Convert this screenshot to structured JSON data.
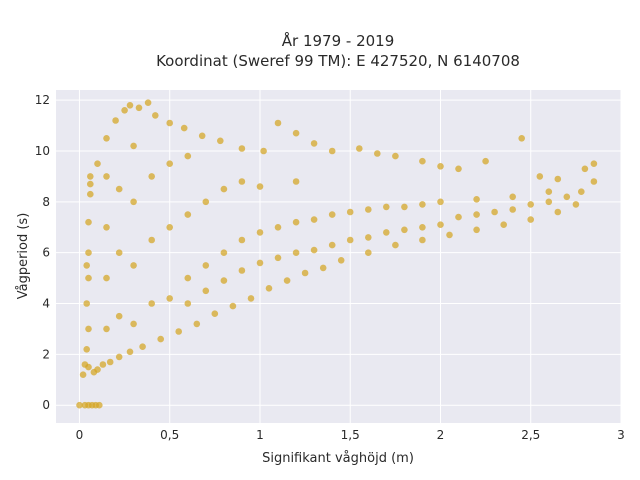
{
  "chart_data": {
    "type": "scatter",
    "title_lines": [
      "År 1979 - 2019",
      "Koordinat (Sweref 99 TM): E 427520, N 6140708"
    ],
    "xlabel": "Signifikant våghöjd (m)",
    "ylabel": "Vågperiod (s)",
    "xlim": [
      -0.13,
      3.0
    ],
    "ylim": [
      -0.7,
      12.4
    ],
    "x_ticks": [
      0,
      0.5,
      1,
      1.5,
      2,
      2.5,
      3
    ],
    "x_tick_labels": [
      "0",
      "0,5",
      "1",
      "1,5",
      "2",
      "2,5",
      "3"
    ],
    "y_ticks": [
      0,
      2,
      4,
      6,
      8,
      10,
      12
    ],
    "y_tick_labels": [
      "0",
      "2",
      "4",
      "6",
      "8",
      "10",
      "12"
    ],
    "grid": true,
    "colors": {
      "point": "#d4a522",
      "plot_background": "#e9e9f1",
      "grid": "#ffffff"
    },
    "point_opacity": 0.72,
    "points": [
      [
        0.0,
        0.0
      ],
      [
        0.03,
        0.0
      ],
      [
        0.05,
        0.0
      ],
      [
        0.07,
        0.0
      ],
      [
        0.09,
        0.0
      ],
      [
        0.11,
        0.0
      ],
      [
        0.02,
        1.2
      ],
      [
        0.03,
        1.6
      ],
      [
        0.04,
        2.2
      ],
      [
        0.05,
        3.0
      ],
      [
        0.04,
        4.0
      ],
      [
        0.05,
        5.0
      ],
      [
        0.05,
        6.0
      ],
      [
        0.05,
        7.2
      ],
      [
        0.06,
        8.3
      ],
      [
        0.06,
        9.0
      ],
      [
        0.04,
        5.5
      ],
      [
        0.06,
        8.7
      ],
      [
        0.05,
        1.5
      ],
      [
        0.08,
        1.3
      ],
      [
        0.1,
        1.4
      ],
      [
        0.13,
        1.6
      ],
      [
        0.17,
        1.7
      ],
      [
        0.22,
        1.9
      ],
      [
        0.28,
        2.1
      ],
      [
        0.35,
        2.3
      ],
      [
        0.45,
        2.6
      ],
      [
        0.55,
        2.9
      ],
      [
        0.65,
        3.2
      ],
      [
        0.75,
        3.6
      ],
      [
        0.85,
        3.9
      ],
      [
        0.95,
        4.2
      ],
      [
        1.05,
        4.6
      ],
      [
        1.15,
        4.9
      ],
      [
        1.25,
        5.2
      ],
      [
        1.35,
        5.4
      ],
      [
        1.45,
        5.7
      ],
      [
        1.6,
        6.0
      ],
      [
        1.75,
        6.3
      ],
      [
        1.9,
        6.5
      ],
      [
        2.05,
        6.7
      ],
      [
        2.2,
        6.9
      ],
      [
        2.35,
        7.1
      ],
      [
        2.5,
        7.3
      ],
      [
        2.65,
        7.6
      ],
      [
        2.75,
        7.9
      ],
      [
        0.1,
        9.5
      ],
      [
        0.15,
        10.5
      ],
      [
        0.2,
        11.2
      ],
      [
        0.25,
        11.6
      ],
      [
        0.28,
        11.8
      ],
      [
        0.33,
        11.7
      ],
      [
        0.38,
        11.9
      ],
      [
        0.42,
        11.4
      ],
      [
        0.5,
        11.1
      ],
      [
        0.58,
        10.9
      ],
      [
        0.68,
        10.6
      ],
      [
        0.78,
        10.4
      ],
      [
        0.9,
        10.1
      ],
      [
        1.02,
        10.0
      ],
      [
        1.1,
        11.1
      ],
      [
        1.2,
        10.7
      ],
      [
        1.3,
        10.3
      ],
      [
        1.4,
        10.0
      ],
      [
        1.55,
        10.1
      ],
      [
        1.65,
        9.9
      ],
      [
        1.75,
        9.8
      ],
      [
        1.9,
        9.6
      ],
      [
        2.0,
        9.4
      ],
      [
        2.1,
        9.3
      ],
      [
        2.25,
        9.6
      ],
      [
        2.45,
        10.5
      ],
      [
        2.55,
        9.0
      ],
      [
        2.65,
        8.9
      ],
      [
        2.8,
        9.3
      ],
      [
        2.85,
        9.5
      ],
      [
        2.85,
        8.8
      ],
      [
        2.78,
        8.4
      ],
      [
        2.7,
        8.2
      ],
      [
        2.6,
        8.0
      ],
      [
        2.5,
        7.9
      ],
      [
        2.4,
        7.7
      ],
      [
        2.3,
        7.6
      ],
      [
        2.2,
        7.5
      ],
      [
        2.1,
        7.4
      ],
      [
        2.0,
        7.1
      ],
      [
        1.9,
        7.0
      ],
      [
        1.8,
        6.9
      ],
      [
        1.7,
        6.8
      ],
      [
        1.6,
        6.6
      ],
      [
        1.5,
        6.5
      ],
      [
        1.4,
        6.3
      ],
      [
        1.3,
        6.1
      ],
      [
        1.2,
        6.0
      ],
      [
        1.1,
        5.8
      ],
      [
        1.0,
        5.6
      ],
      [
        0.9,
        5.3
      ],
      [
        0.8,
        4.9
      ],
      [
        0.7,
        4.5
      ],
      [
        0.6,
        4.0
      ],
      [
        0.15,
        3.0
      ],
      [
        0.15,
        5.0
      ],
      [
        0.15,
        7.0
      ],
      [
        0.15,
        9.0
      ],
      [
        0.22,
        3.5
      ],
      [
        0.22,
        6.0
      ],
      [
        0.22,
        8.5
      ],
      [
        0.3,
        3.2
      ],
      [
        0.3,
        5.5
      ],
      [
        0.3,
        8.0
      ],
      [
        0.3,
        10.2
      ],
      [
        0.4,
        4.0
      ],
      [
        0.4,
        6.5
      ],
      [
        0.4,
        9.0
      ],
      [
        0.5,
        4.2
      ],
      [
        0.5,
        7.0
      ],
      [
        0.5,
        9.5
      ],
      [
        0.6,
        5.0
      ],
      [
        0.6,
        7.5
      ],
      [
        0.6,
        9.8
      ],
      [
        0.7,
        5.5
      ],
      [
        0.7,
        8.0
      ],
      [
        0.8,
        6.0
      ],
      [
        0.8,
        8.5
      ],
      [
        0.9,
        6.5
      ],
      [
        0.9,
        8.8
      ],
      [
        1.0,
        6.8
      ],
      [
        1.0,
        8.6
      ],
      [
        1.1,
        7.0
      ],
      [
        1.2,
        7.2
      ],
      [
        1.2,
        8.8
      ],
      [
        1.3,
        7.3
      ],
      [
        1.4,
        7.5
      ],
      [
        1.5,
        7.6
      ],
      [
        1.6,
        7.7
      ],
      [
        1.7,
        7.8
      ],
      [
        1.8,
        7.8
      ],
      [
        1.9,
        7.9
      ],
      [
        2.0,
        8.0
      ],
      [
        2.2,
        8.1
      ],
      [
        2.4,
        8.2
      ],
      [
        2.6,
        8.4
      ]
    ]
  }
}
